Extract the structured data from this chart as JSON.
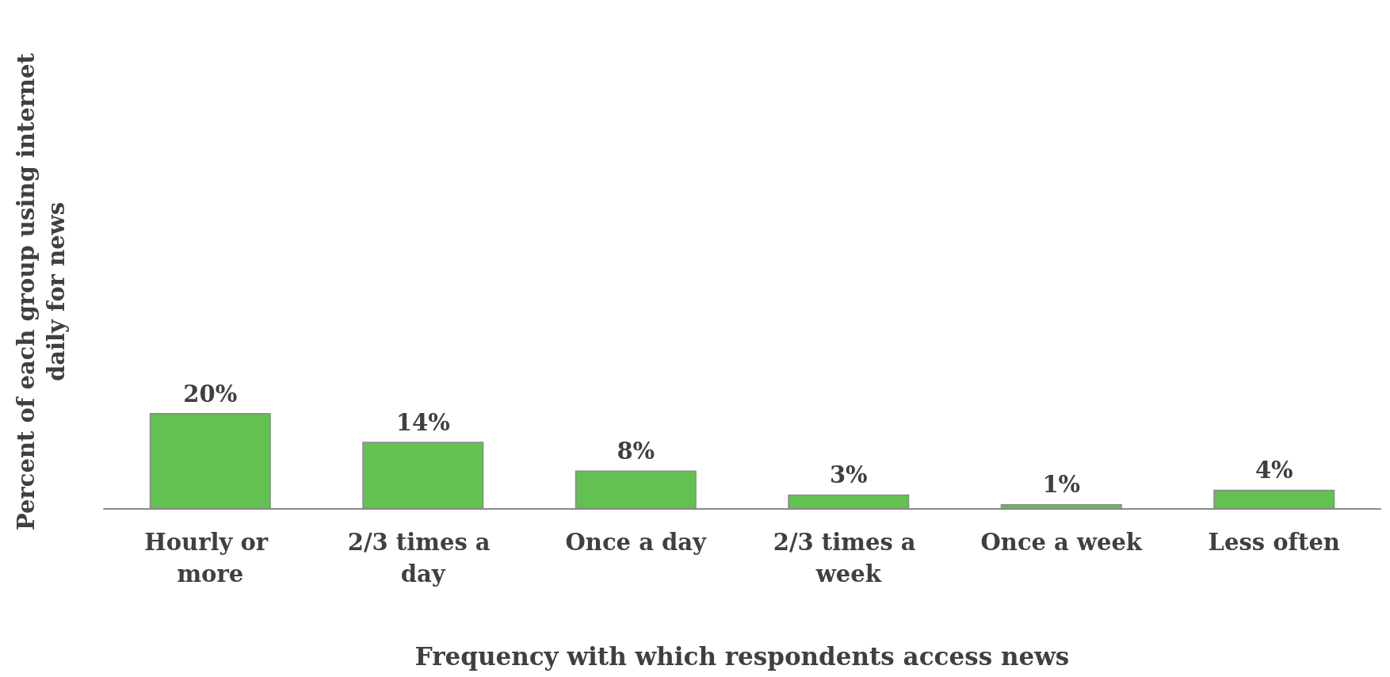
{
  "chart_data": {
    "type": "bar",
    "xlabel": "Frequency with which respondents access news",
    "ylabel": "Percent of each group using internet\ndaily for news",
    "categories": [
      "Hourly or more",
      "2/3 times a day",
      "Once a day",
      "2/3 times a week",
      "Once a week",
      "Less often"
    ],
    "values": [
      20,
      14,
      8,
      3,
      1,
      4
    ],
    "value_labels": [
      "20%",
      "14%",
      "8%",
      "3%",
      "1%",
      "4%"
    ],
    "color": "#62c150",
    "grid": false
  }
}
